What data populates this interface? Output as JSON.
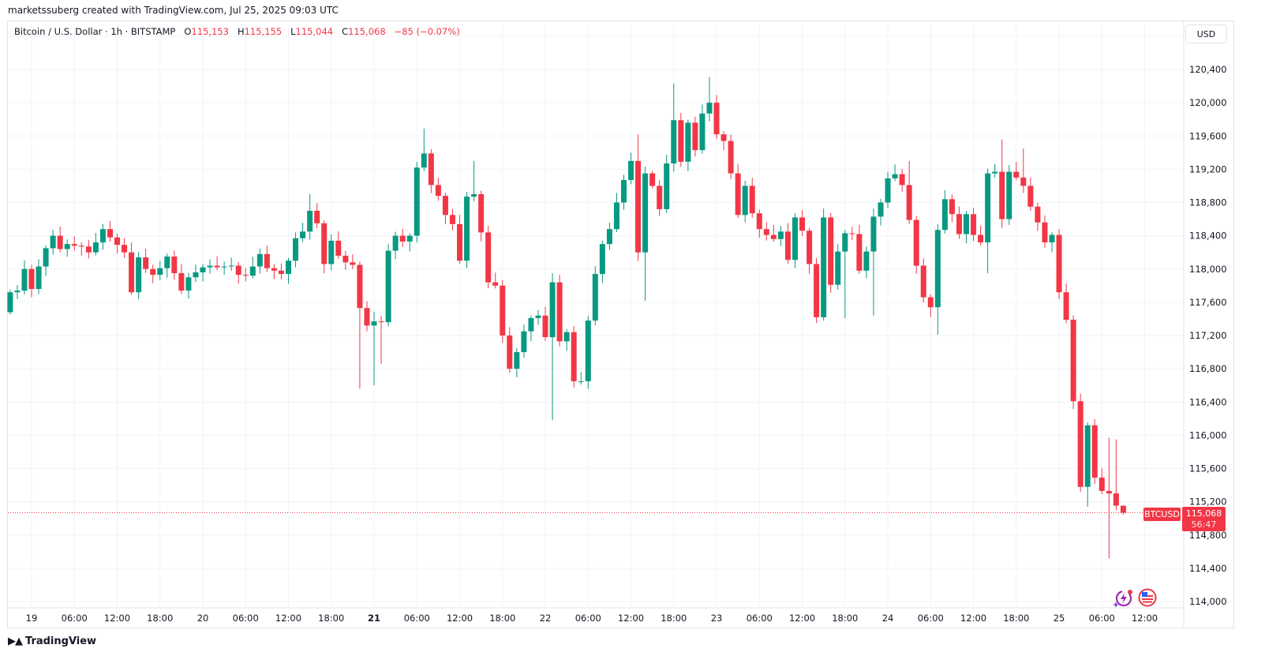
{
  "credit": "marketssuberg created with TradingView.com, Jul 25, 2025 09:03 UTC",
  "legend": {
    "symbol": "Bitcoin / U.S. Dollar · 1h · BITSTAMP",
    "o_label": "O",
    "o": "115,153",
    "h_label": "H",
    "h": "115,155",
    "l_label": "L",
    "l": "115,044",
    "c_label": "C",
    "c": "115,068",
    "change": "−85 (−0.07%)"
  },
  "currency_button": "USD",
  "last_price": {
    "symbol": "BTCUSD",
    "price": "115,068",
    "countdown": "56:47"
  },
  "brand": "TradingView",
  "icons": [
    "assistant-sparkle-icon",
    "us-flag-icon"
  ],
  "colors": {
    "up": "#089981",
    "down": "#f23645",
    "grid": "#f0f3fa"
  },
  "chart_data": {
    "type": "candlestick",
    "title": "Bitcoin / U.S. Dollar · 1h · BITSTAMP",
    "interval": "1h",
    "start": "Jul 18 21:00",
    "ylim": [
      114000,
      120800
    ],
    "y_ticks": [
      "114,000",
      "114,400",
      "114,800",
      "115,200",
      "115,600",
      "116,000",
      "116,400",
      "116,800",
      "117,200",
      "117,600",
      "118,000",
      "118,400",
      "118,800",
      "119,200",
      "119,600",
      "120,000",
      "120,400"
    ],
    "y_tick_values": [
      114000,
      114400,
      114800,
      115200,
      115600,
      116000,
      116400,
      116800,
      117200,
      117600,
      118000,
      118400,
      118800,
      119200,
      119600,
      120000,
      120400
    ],
    "x_ticks": [
      "19",
      "06:00",
      "12:00",
      "18:00",
      "20",
      "06:00",
      "12:00",
      "18:00",
      "21",
      "06:00",
      "12:00",
      "18:00",
      "22",
      "06:00",
      "12:00",
      "18:00",
      "23",
      "06:00",
      "12:00",
      "18:00",
      "24",
      "06:00",
      "12:00",
      "18:00",
      "25",
      "06:00",
      "12:00"
    ],
    "bold_x_ticks": [
      "21"
    ],
    "first_open": 117480,
    "close": [
      117720,
      117740,
      118000,
      117760,
      118030,
      118250,
      118400,
      118240,
      118300,
      118280,
      118270,
      118200,
      118320,
      118480,
      118380,
      118290,
      118200,
      117720,
      118140,
      118000,
      117930,
      118010,
      118150,
      117950,
      117740,
      117900,
      117960,
      118020,
      118040,
      118020,
      118030,
      118040,
      117930,
      117920,
      118030,
      118180,
      118010,
      117980,
      117940,
      118100,
      118370,
      118450,
      118700,
      118550,
      118060,
      118340,
      118160,
      118080,
      118050,
      117530,
      117320,
      117370,
      117360,
      118220,
      118400,
      118330,
      118400,
      119220,
      119390,
      119010,
      118880,
      118650,
      118540,
      118100,
      118870,
      118900,
      118440,
      117840,
      117800,
      117200,
      116800,
      117000,
      117250,
      117410,
      117440,
      117180,
      117840,
      117130,
      117240,
      116650,
      116650,
      117380,
      117940,
      118300,
      118480,
      118800,
      119070,
      119300,
      118200,
      119150,
      119000,
      118720,
      119270,
      119790,
      119290,
      119760,
      119430,
      119870,
      120000,
      119620,
      119540,
      119150,
      118650,
      119000,
      118670,
      118480,
      118410,
      118360,
      118450,
      118110,
      118620,
      118460,
      118060,
      117420,
      118620,
      117810,
      118210,
      118430,
      118420,
      117980,
      118210,
      118630,
      118800,
      119090,
      119140,
      119010,
      118590,
      118040,
      117660,
      117540,
      118470,
      118840,
      118660,
      118420,
      118660,
      118410,
      118320,
      119150,
      119170,
      118600,
      119170,
      119100,
      119000,
      118750,
      118560,
      118320,
      118410,
      117720,
      117390,
      116410,
      115380,
      116120,
      115490,
      115330,
      115300,
      115153,
      115068
    ],
    "high_overrides": {
      "42": 118900,
      "53": 118300,
      "58": 119690,
      "65": 119300,
      "76": 117950,
      "88": 119620,
      "93": 120230,
      "98": 120310,
      "126": 119300,
      "139": 119560,
      "142": 119450,
      "154": 115970,
      "155": 115950,
      "156": 115155
    },
    "low_overrides": {
      "49": 116560,
      "51": 116600,
      "52": 116860,
      "76": 116180,
      "89": 117620,
      "113": 117350,
      "117": 117410,
      "121": 117440,
      "130": 117210,
      "137": 117950,
      "151": 115140,
      "154": 114520,
      "156": 115044
    },
    "last_price": 115068
  }
}
